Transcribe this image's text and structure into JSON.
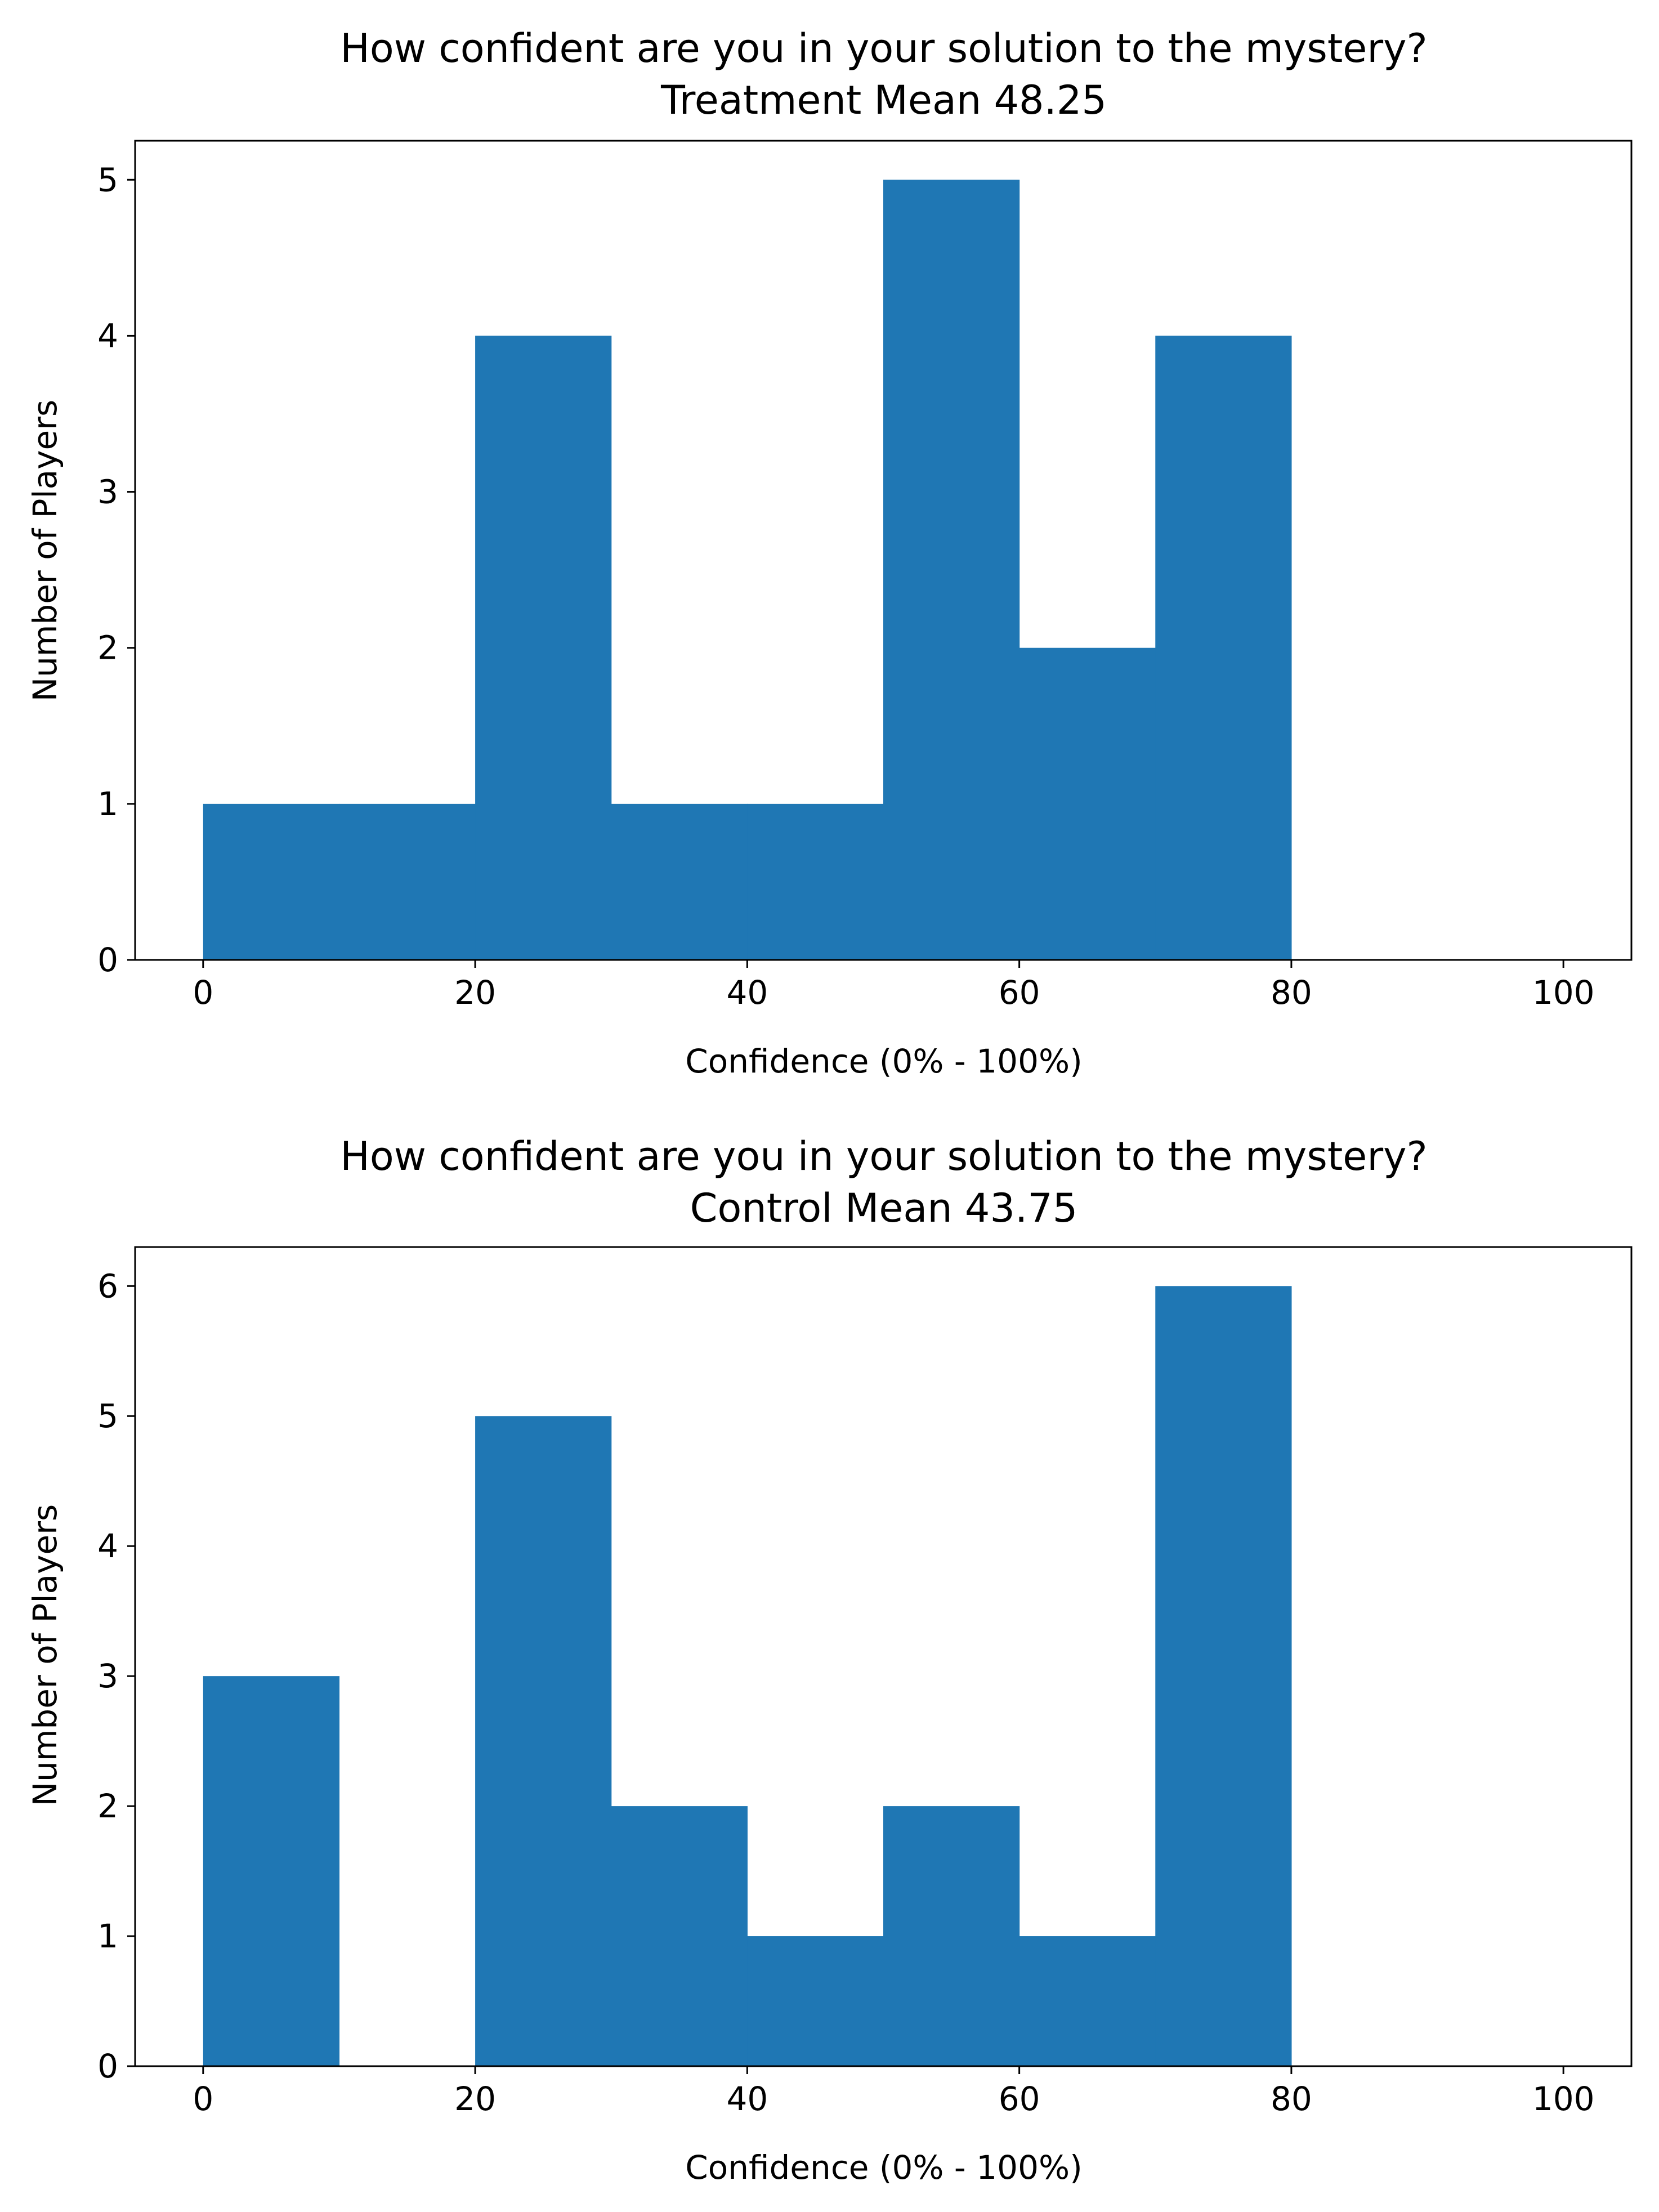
{
  "chart_data": [
    {
      "type": "bar",
      "title": "How confident are you in your solution to the mystery?",
      "subtitle": "Treatment Mean 48.25",
      "xlabel": "Confidence (0% - 100%)",
      "ylabel": "Number of Players",
      "bin_edges": [
        0,
        10,
        20,
        30,
        40,
        50,
        60,
        70,
        80,
        90,
        100
      ],
      "values": [
        1,
        1,
        4,
        1,
        1,
        5,
        2,
        4,
        0,
        0
      ],
      "xlim": [
        -5,
        105
      ],
      "ylim": [
        0,
        5.25
      ],
      "xticks": [
        0,
        20,
        40,
        60,
        80,
        100
      ],
      "yticks": [
        0,
        1,
        2,
        3,
        4,
        5
      ],
      "grid": false,
      "color": "#1f77b4"
    },
    {
      "type": "bar",
      "title": "How confident are you in your solution to the mystery?",
      "subtitle": "Control Mean 43.75",
      "xlabel": "Confidence (0% - 100%)",
      "ylabel": "Number of Players",
      "bin_edges": [
        0,
        10,
        20,
        30,
        40,
        50,
        60,
        70,
        80,
        90,
        100
      ],
      "values": [
        3,
        0,
        5,
        2,
        1,
        2,
        1,
        6,
        0,
        0
      ],
      "xlim": [
        -5,
        105
      ],
      "ylim": [
        0,
        6.3
      ],
      "xticks": [
        0,
        20,
        40,
        60,
        80,
        100
      ],
      "yticks": [
        0,
        1,
        2,
        3,
        4,
        5,
        6
      ],
      "grid": false,
      "color": "#1f77b4"
    }
  ]
}
